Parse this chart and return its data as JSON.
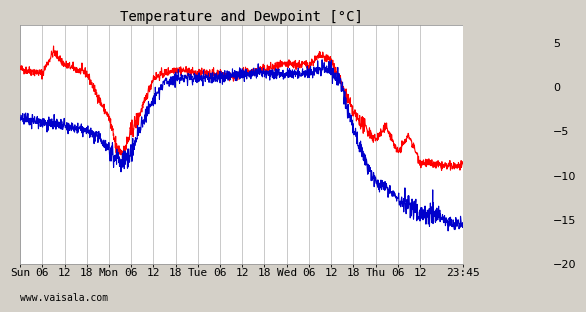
{
  "title": "Temperature and Dewpoint [°C]",
  "ylim": [
    -20,
    7
  ],
  "yticks": [
    -20,
    -15,
    -10,
    -5,
    0,
    5
  ],
  "background_color": "#d4d0c8",
  "plot_bg_color": "#ffffff",
  "grid_color": "#c0c0c0",
  "temp_color": "#ff0000",
  "dewp_color": "#0000cc",
  "watermark": "www.vaisala.com",
  "title_fontsize": 10,
  "tick_fontsize": 8,
  "line_width": 0.8,
  "x_start_hours": 0,
  "x_end_hours": 119.75,
  "xtick_labels": [
    "Sun",
    "06",
    "12",
    "18",
    "Mon",
    "06",
    "12",
    "18",
    "Tue",
    "06",
    "12",
    "18",
    "Wed",
    "06",
    "12",
    "18",
    "Thu",
    "06",
    "12",
    "23:45"
  ],
  "xtick_positions": [
    0,
    6,
    12,
    18,
    24,
    30,
    36,
    42,
    48,
    54,
    60,
    66,
    72,
    78,
    84,
    90,
    96,
    102,
    108,
    119.75
  ],
  "noise_scale_t": 0.25,
  "noise_scale_d": 0.35,
  "random_seed": 42
}
